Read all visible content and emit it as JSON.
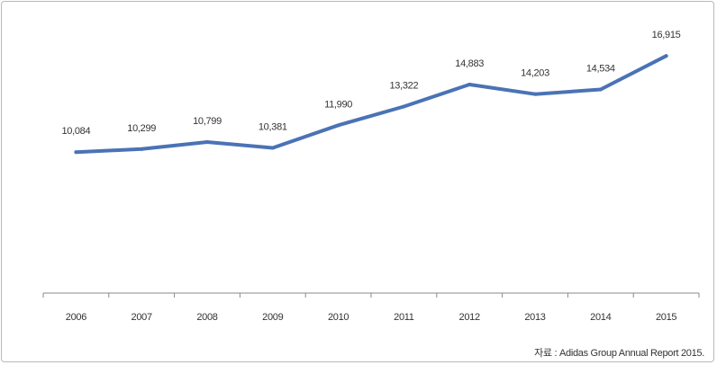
{
  "chart_data": {
    "type": "line",
    "categories": [
      "2006",
      "2007",
      "2008",
      "2009",
      "2010",
      "2011",
      "2012",
      "2013",
      "2014",
      "2015"
    ],
    "series": [
      {
        "values": [
          10084,
          10299,
          10799,
          10381,
          11990,
          13322,
          14883,
          14203,
          14534,
          16915
        ],
        "labels": [
          "10,084",
          "10,299",
          "10,799",
          "10,381",
          "11,990",
          "13,322",
          "14,883",
          "14,203",
          "14,534",
          "16,915"
        ]
      }
    ],
    "title": "",
    "xlabel": "",
    "ylabel": "",
    "grid": false,
    "line_color": "#4a73b5",
    "source_note": "자료 : Adidas Group Annual Report 2015."
  }
}
